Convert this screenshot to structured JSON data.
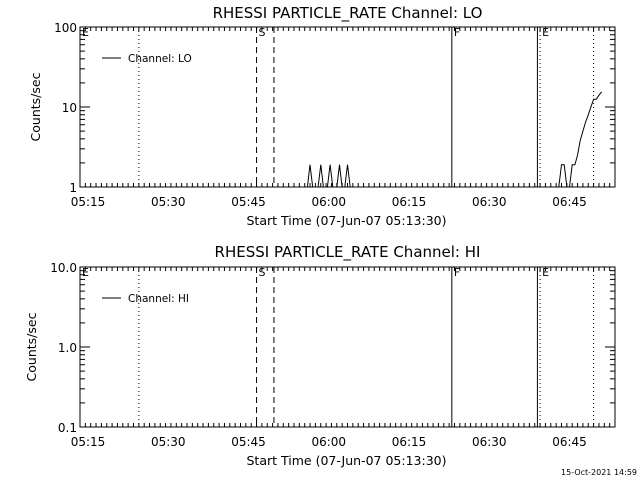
{
  "chart_data": [
    {
      "type": "line",
      "title": "RHESSI PARTICLE_RATE Channel: LO",
      "xlabel": "Start Time (07-Jun-07 05:13:30)",
      "ylabel": "Counts/sec",
      "yscale": "log",
      "ylim": [
        1,
        100
      ],
      "yticks": [
        "1",
        "10",
        "100"
      ],
      "xlim": [
        "05:13:30",
        "06:53:30"
      ],
      "xticks": [
        "05:15",
        "05:30",
        "05:45",
        "06:00",
        "06:15",
        "06:30",
        "06:45"
      ],
      "grid": false,
      "legend_position": "top-left",
      "series": [
        {
          "name": "Channel: LO",
          "points": [
            [
              "05:56:00",
              1
            ],
            [
              "05:56:30",
              1.9
            ],
            [
              "05:57:00",
              1
            ],
            [
              "05:58:00",
              1
            ],
            [
              "05:58:30",
              1.9
            ],
            [
              "05:59:00",
              1
            ],
            [
              "05:59:45",
              1
            ],
            [
              "06:00:15",
              1.9
            ],
            [
              "06:00:45",
              1
            ],
            [
              "06:01:30",
              1
            ],
            [
              "06:02:00",
              1.9
            ],
            [
              "06:02:30",
              1
            ],
            [
              "06:03:00",
              1
            ],
            [
              "06:03:30",
              1.9
            ],
            [
              "06:04:00",
              1
            ],
            [
              "06:43:00",
              1
            ],
            [
              "06:43:30",
              1.9
            ],
            [
              "06:44:00",
              1.9
            ],
            [
              "06:44:30",
              1
            ],
            [
              "06:45:00",
              1
            ],
            [
              "06:45:30",
              1.9
            ],
            [
              "06:46:00",
              1.9
            ],
            [
              "06:46:30",
              2.5
            ],
            [
              "06:47:00",
              3.8
            ],
            [
              "06:47:30",
              5.0
            ],
            [
              "06:48:00",
              6.5
            ],
            [
              "06:48:30",
              8.0
            ],
            [
              "06:49:00",
              10.0
            ],
            [
              "06:49:30",
              12.5
            ],
            [
              "06:50:00",
              12.5
            ],
            [
              "06:50:30",
              14.0
            ],
            [
              "06:51:00",
              15.5
            ]
          ]
        }
      ],
      "markers": [
        {
          "label": "E",
          "time": "05:13:30",
          "style": "dotted"
        },
        {
          "label": "",
          "time": "05:24:30",
          "style": "dotted"
        },
        {
          "label": "S",
          "time": "05:46:30",
          "style": "dashed"
        },
        {
          "label": "",
          "time": "05:49:45",
          "style": "dashed"
        },
        {
          "label": "F",
          "time": "06:23:00",
          "style": "solid"
        },
        {
          "label": "",
          "time": "06:39:00",
          "style": "solid"
        },
        {
          "label": "E",
          "time": "06:39:30",
          "style": "dotted"
        },
        {
          "label": "",
          "time": "06:49:30",
          "style": "dotted"
        }
      ]
    },
    {
      "type": "line",
      "title": "RHESSI PARTICLE_RATE Channel: HI",
      "xlabel": "Start Time (07-Jun-07 05:13:30)",
      "ylabel": "Counts/sec",
      "yscale": "log",
      "ylim": [
        0.1,
        10
      ],
      "yticks": [
        "0.1",
        "1.0",
        "10.0"
      ],
      "xlim": [
        "05:13:30",
        "06:53:30"
      ],
      "xticks": [
        "05:15",
        "05:30",
        "05:45",
        "06:00",
        "06:15",
        "06:30",
        "06:45"
      ],
      "grid": false,
      "legend_position": "top-left",
      "series": [
        {
          "name": "Channel: HI",
          "points": []
        }
      ],
      "markers": [
        {
          "label": "E",
          "time": "05:13:30",
          "style": "dotted"
        },
        {
          "label": "",
          "time": "05:24:30",
          "style": "dotted"
        },
        {
          "label": "S",
          "time": "05:46:30",
          "style": "dashed"
        },
        {
          "label": "",
          "time": "05:49:45",
          "style": "dashed"
        },
        {
          "label": "F",
          "time": "06:23:00",
          "style": "solid"
        },
        {
          "label": "",
          "time": "06:39:00",
          "style": "solid"
        },
        {
          "label": "E",
          "time": "06:39:30",
          "style": "dotted"
        },
        {
          "label": "",
          "time": "06:49:30",
          "style": "dotted"
        }
      ]
    }
  ],
  "timestamp": "15-Oct-2021 14:59"
}
